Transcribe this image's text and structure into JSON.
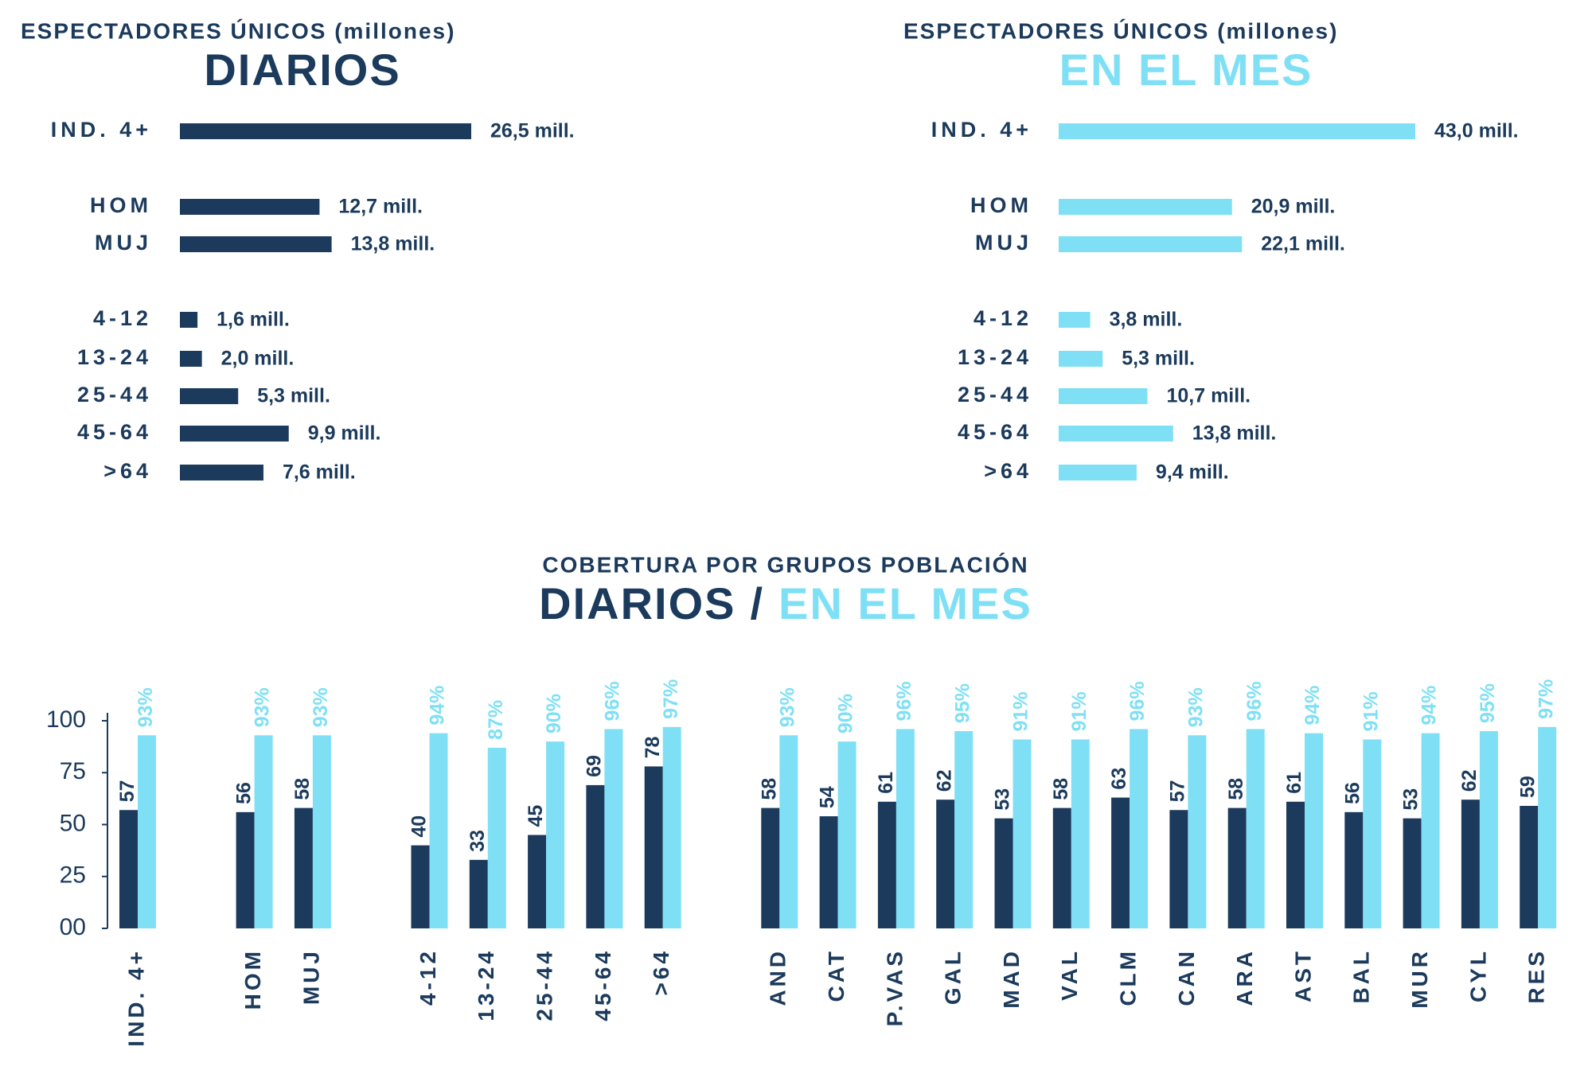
{
  "chart_data": [
    {
      "type": "hbar",
      "subtitle": "ESPECTADORES ÚNICOS (millones)",
      "title": "DIARIOS",
      "color": "#1b3a5c",
      "categories": [
        "IND. 4+",
        "HOM",
        "MUJ",
        "4-12",
        "13-24",
        "25-44",
        "45-64",
        ">64"
      ],
      "values": [
        26.5,
        12.7,
        13.8,
        1.6,
        2.0,
        5.3,
        9.9,
        7.6
      ],
      "value_labels": [
        "26,5 mill.",
        "12,7 mill.",
        "13,8 mill.",
        "1,6 mill.",
        "2,0 mill.",
        "5,3 mill.",
        "9,9 mill.",
        "7,6 mill."
      ]
    },
    {
      "type": "hbar",
      "subtitle": "ESPECTADORES ÚNICOS (millones)",
      "title": "EN EL MES",
      "color": "#7fe0f5",
      "categories": [
        "IND. 4+",
        "HOM",
        "MUJ",
        "4-12",
        "13-24",
        "25-44",
        "45-64",
        ">64"
      ],
      "values": [
        43.0,
        20.9,
        22.1,
        3.8,
        5.3,
        10.7,
        13.8,
        9.4
      ],
      "value_labels": [
        "43,0 mill.",
        "20,9 mill.",
        "22,1 mill.",
        "3,8 mill.",
        "5,3 mill.",
        "10,7 mill.",
        "13,8 mill.",
        "9,4 mill."
      ]
    },
    {
      "type": "bar",
      "subtitle": "COBERTURA POR GRUPOS POBLACIÓN",
      "title_parts": [
        "DIARIOS",
        "/",
        "EN EL MES"
      ],
      "categories": [
        "IND. 4+",
        "HOM",
        "MUJ",
        "4-12",
        "13-24",
        "25-44",
        "45-64",
        ">64",
        "AND",
        "CAT",
        "P.VAS",
        "GAL",
        "MAD",
        "VAL",
        "CLM",
        "CAN",
        "ARA",
        "AST",
        "BAL",
        "MUR",
        "CYL",
        "RES"
      ],
      "ylim": [
        0,
        100
      ],
      "yticks": [
        {
          "value": 0,
          "label": "00"
        },
        25,
        50,
        75,
        100
      ],
      "series": [
        {
          "color": "#1b3a5c",
          "values": [
            57,
            56,
            58,
            40,
            33,
            45,
            69,
            78,
            58,
            54,
            61,
            62,
            53,
            58,
            63,
            57,
            58,
            61,
            56,
            53,
            62,
            59
          ]
        },
        {
          "color": "#7fe0f5",
          "values": [
            93,
            93,
            93,
            94,
            87,
            90,
            96,
            97,
            93,
            90,
            96,
            95,
            91,
            91,
            96,
            93,
            96,
            94,
            91,
            94,
            95,
            97
          ],
          "value_labels": [
            "93%",
            "93%",
            "93%",
            "94%",
            "87%",
            "90%",
            "96%",
            "97%",
            "93%",
            "90%",
            "96%",
            "95%",
            "91%",
            "91%",
            "96%",
            "93%",
            "96%",
            "94%",
            "91%",
            "94%",
            "95%",
            "97%"
          ]
        }
      ]
    }
  ]
}
